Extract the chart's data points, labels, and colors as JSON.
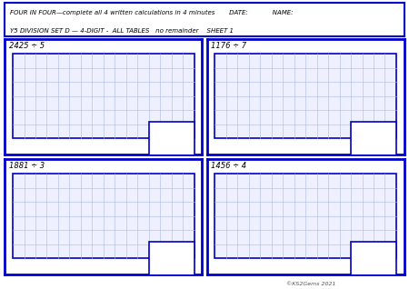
{
  "title_line1": "FOUR IN FOUR—complete all 4 written calculations in 4 minutes       DATE:            NAME:",
  "title_line2": "Y5 DIVISION SET D — 4-DIGIT -  ALL TABLES   no remainder    SHEET 1",
  "problems": [
    "2425 ÷ 5",
    "1176 ÷ 7",
    "1881 ÷ 3",
    "1456 ÷ 4"
  ],
  "copyright": "©KS2Gems 2021",
  "border_color": "#0000cc",
  "grid_color": "#aabbdd",
  "grid_fill": "#eef0ff",
  "bg_color": "#ffffff",
  "grid_cols": 16,
  "grid_rows": 6,
  "header_fontsize": 5.0,
  "label_fontsize": 6.0,
  "copyright_fontsize": 4.5
}
